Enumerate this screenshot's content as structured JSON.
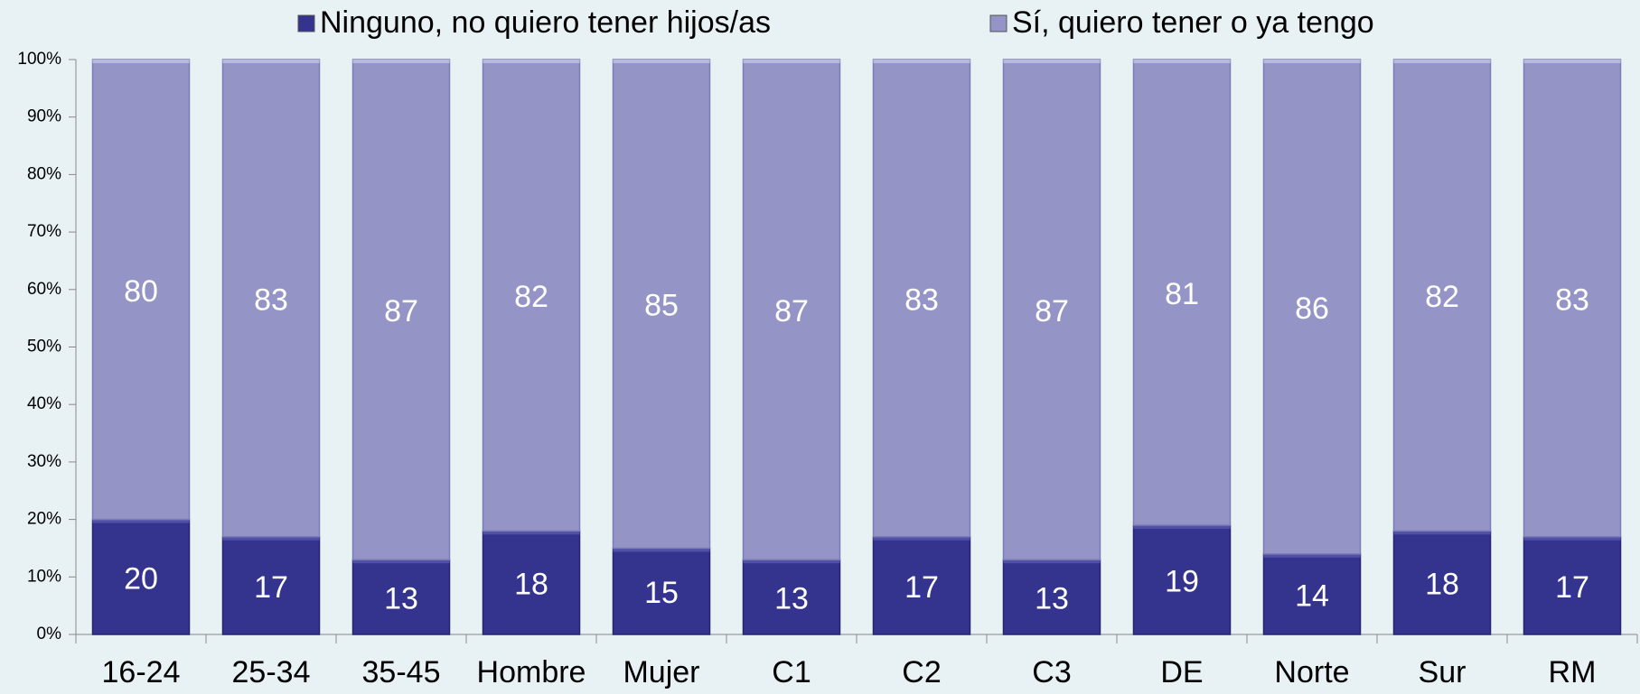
{
  "chart_data": {
    "type": "stacked_bar",
    "categories": [
      "16-24",
      "25-34",
      "35-45",
      "Hombre",
      "Mujer",
      "C1",
      "C2",
      "C3",
      "DE",
      "Norte",
      "Sur",
      "RM"
    ],
    "series": [
      {
        "name": "Ninguno, no quiero tener hijos/as",
        "color": "#34348e",
        "values": [
          20,
          17,
          13,
          18,
          15,
          13,
          17,
          13,
          19,
          14,
          18,
          17
        ]
      },
      {
        "name": "Sí, quiero tener o ya tengo",
        "color": "#9494c6",
        "values": [
          80,
          83,
          87,
          82,
          85,
          87,
          83,
          87,
          81,
          86,
          82,
          83
        ]
      }
    ],
    "ylim": [
      0,
      100
    ],
    "yticks": [
      {
        "value": 0,
        "label": "0%"
      },
      {
        "value": 10,
        "label": "10%"
      },
      {
        "value": 20,
        "label": "20%"
      },
      {
        "value": 30,
        "label": "30%"
      },
      {
        "value": 40,
        "label": "40%"
      },
      {
        "value": 50,
        "label": "50%"
      },
      {
        "value": 60,
        "label": "60%"
      },
      {
        "value": 70,
        "label": "70%"
      },
      {
        "value": 80,
        "label": "80%"
      },
      {
        "value": 90,
        "label": "90%"
      },
      {
        "value": 100,
        "label": "100%"
      }
    ]
  }
}
